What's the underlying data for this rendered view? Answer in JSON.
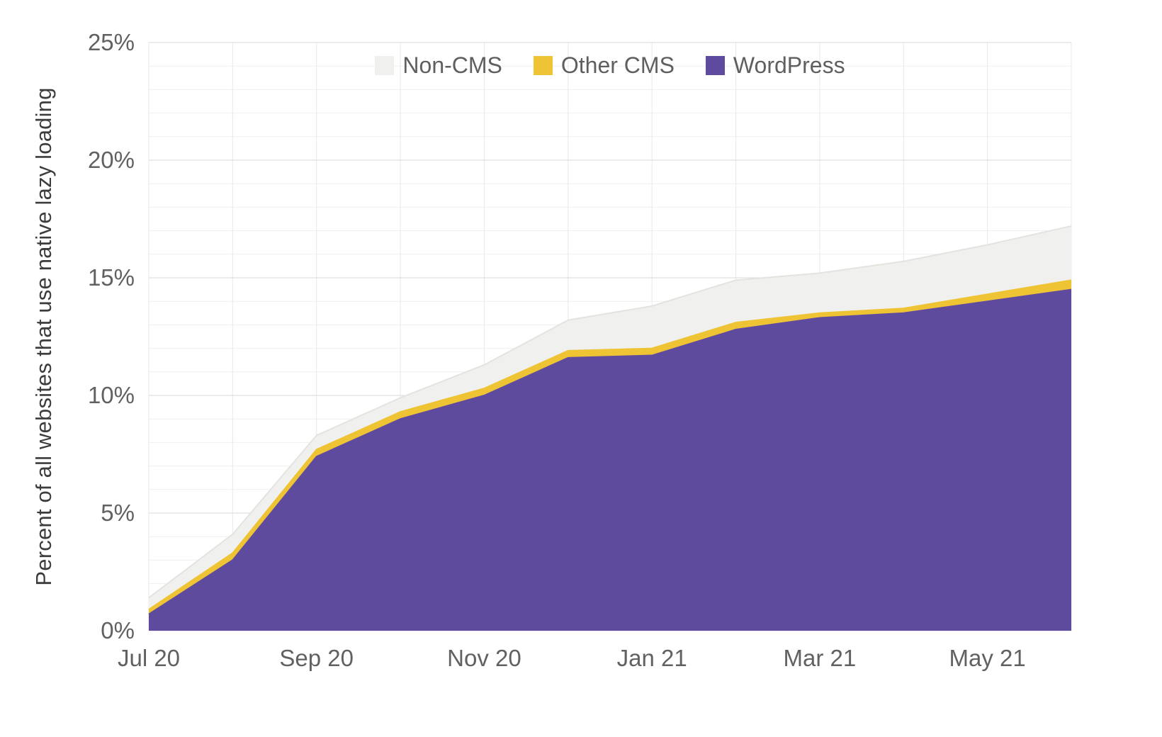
{
  "legend": [
    {
      "label": "Non-CMS",
      "color": "#f0f0ee"
    },
    {
      "label": "Other CMS",
      "color": "#eec334"
    },
    {
      "label": "WordPress",
      "color": "#5e4b9e"
    }
  ],
  "chart_data": {
    "type": "area",
    "stacked": true,
    "title": "",
    "ylabel": "Percent of all websites that use native lazy loading",
    "xlabel": "",
    "ylim": [
      0,
      25
    ],
    "grid": true,
    "legend_position": "top-center-inside",
    "x": [
      "Jul 20",
      "Aug 20",
      "Sep 20",
      "Oct 20",
      "Nov 20",
      "Dec 20",
      "Jan 21",
      "Feb 21",
      "Mar 21",
      "Apr 21",
      "May 21",
      "Jun 21"
    ],
    "x_tick_indices": [
      0,
      2,
      4,
      6,
      8,
      10
    ],
    "x_tick_labels": [
      "Jul 20",
      "Sep 20",
      "Nov 20",
      "Jan 21",
      "Mar 21",
      "May 21"
    ],
    "y_ticks": [
      0,
      5,
      10,
      15,
      20,
      25
    ],
    "y_tick_labels": [
      "0%",
      "5%",
      "10%",
      "15%",
      "20%",
      "25%"
    ],
    "series": [
      {
        "name": "WordPress",
        "color": "#5e4b9e",
        "values": [
          0.7,
          3.0,
          7.4,
          9.0,
          10.0,
          11.6,
          11.7,
          12.8,
          13.3,
          13.5,
          14.0,
          14.5
        ]
      },
      {
        "name": "Other CMS",
        "color": "#eec334",
        "values": [
          0.2,
          0.3,
          0.3,
          0.3,
          0.3,
          0.3,
          0.3,
          0.3,
          0.2,
          0.2,
          0.3,
          0.4
        ]
      },
      {
        "name": "Non-CMS",
        "color": "#f0f0ee",
        "values": [
          0.5,
          0.8,
          0.6,
          0.6,
          1.0,
          1.3,
          1.8,
          1.8,
          1.7,
          2.0,
          2.1,
          2.3
        ]
      }
    ],
    "colors": {
      "grid_major": "#d9d9d9",
      "grid_minor": "#efefef",
      "grid_vertical": "#e8e8e8",
      "tick_text": "#616161",
      "noncms_edge": "#e3e3e0"
    }
  }
}
